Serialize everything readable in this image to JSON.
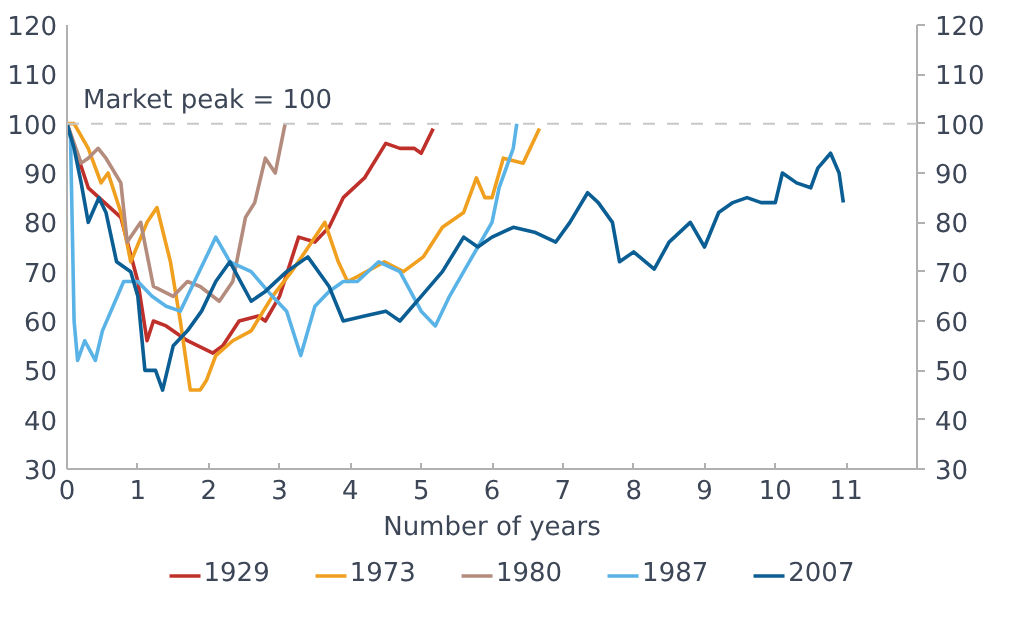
{
  "chart_data": {
    "type": "line",
    "xlabel": "Number of years",
    "xlim": [
      0,
      12
    ],
    "xticks": [
      0,
      1,
      2,
      3,
      4,
      5,
      6,
      7,
      8,
      9,
      10,
      11
    ],
    "ylim": [
      30,
      120
    ],
    "yticks": [
      30,
      40,
      50,
      60,
      70,
      80,
      90,
      100,
      110,
      120
    ],
    "y2lim": [
      30,
      120
    ],
    "y2ticks": [
      30,
      40,
      50,
      60,
      70,
      80,
      90,
      100,
      110,
      120
    ],
    "grid": false,
    "legend": "bottom",
    "line_style": "solid",
    "marker": "none",
    "ref_lines": [
      {
        "axis": "y",
        "value": 100,
        "label": "Market peak = 100",
        "color": "#c8c8c8",
        "line_style": "dashed"
      }
    ],
    "series": [
      {
        "name": "1929",
        "color": "#c0302b",
        "x": [
          0,
          0.3,
          0.76,
          1.0,
          1.13,
          1.22,
          1.4,
          1.7,
          2.06,
          2.2,
          2.43,
          2.7,
          2.8,
          3.0,
          3.27,
          3.5,
          3.7,
          3.9,
          4.2,
          4.5,
          4.7,
          4.9,
          5.0,
          5.17
        ],
        "values": [
          100,
          87,
          81,
          68,
          56,
          60,
          59,
          56,
          53.5,
          55,
          60,
          61,
          60,
          65,
          77,
          76,
          79,
          85,
          89,
          96,
          95,
          95,
          94,
          99
        ]
      },
      {
        "name": "1973",
        "color": "#f0a01e",
        "x": [
          0,
          0.1,
          0.3,
          0.48,
          0.58,
          0.76,
          0.9,
          1.13,
          1.27,
          1.46,
          1.6,
          1.74,
          1.88,
          1.97,
          2.1,
          2.34,
          2.6,
          2.9,
          3.17,
          3.36,
          3.64,
          3.83,
          3.96,
          4.1,
          4.48,
          4.75,
          5.03,
          5.3,
          5.6,
          5.78,
          5.9,
          6.0,
          6.16,
          6.44,
          6.67
        ],
        "values": [
          100,
          100,
          95,
          88,
          90,
          82,
          72,
          80,
          83,
          72,
          60,
          46,
          46,
          48,
          53,
          56,
          58,
          65,
          70,
          74,
          80,
          72,
          68,
          69,
          72,
          70,
          73,
          79,
          82,
          89,
          85,
          85,
          93,
          92,
          99
        ]
      },
      {
        "name": "1980",
        "color": "#b38c7d",
        "x": [
          0,
          0.2,
          0.3,
          0.44,
          0.55,
          0.76,
          0.85,
          1.04,
          1.22,
          1.5,
          1.7,
          1.88,
          2.15,
          2.34,
          2.52,
          2.65,
          2.8,
          2.94,
          3.08
        ],
        "values": [
          100,
          92,
          93,
          95,
          93,
          88,
          76,
          80,
          67,
          65,
          68,
          67,
          64,
          68,
          81,
          84,
          93,
          90,
          100
        ]
      },
      {
        "name": "1987",
        "color": "#5ab3e6",
        "x": [
          0,
          0.05,
          0.1,
          0.15,
          0.25,
          0.4,
          0.5,
          0.65,
          0.8,
          1.0,
          1.2,
          1.4,
          1.6,
          1.8,
          2.0,
          2.1,
          2.3,
          2.6,
          2.9,
          3.1,
          3.3,
          3.5,
          3.7,
          3.9,
          4.1,
          4.4,
          4.7,
          5.0,
          5.2,
          5.4,
          5.6,
          5.8,
          6.0,
          6.1,
          6.3,
          6.35
        ],
        "values": [
          100,
          97,
          60,
          52,
          56,
          52,
          58,
          63,
          68,
          68,
          65,
          63,
          62,
          68,
          74,
          77,
          72,
          70,
          65,
          62,
          53,
          63,
          66,
          68,
          68,
          72,
          70,
          62,
          59,
          65,
          70,
          75,
          80,
          87,
          95,
          100
        ]
      },
      {
        "name": "2007",
        "color": "#0b5e93",
        "x": [
          0,
          0.1,
          0.2,
          0.3,
          0.45,
          0.55,
          0.7,
          0.9,
          1.0,
          1.1,
          1.25,
          1.35,
          1.5,
          1.7,
          1.9,
          2.1,
          2.3,
          2.6,
          2.8,
          3.1,
          3.4,
          3.7,
          3.9,
          4.2,
          4.5,
          4.7,
          5.0,
          5.3,
          5.6,
          5.8,
          6.0,
          6.3,
          6.6,
          6.9,
          7.1,
          7.35,
          7.5,
          7.7,
          7.8,
          8.0,
          8.29,
          8.5,
          8.8,
          9.0,
          9.2,
          9.4,
          9.6,
          9.8,
          10.0,
          10.1,
          10.3,
          10.5,
          10.6,
          10.78,
          10.9,
          10.96
        ],
        "values": [
          100,
          95,
          88,
          80,
          85,
          82,
          72,
          70,
          65,
          50,
          50,
          46,
          55,
          58,
          62,
          68,
          72,
          64,
          66,
          70,
          73,
          67,
          60,
          61,
          62,
          60,
          65,
          70,
          77,
          75,
          77,
          79,
          78,
          76,
          80,
          86,
          84,
          80,
          72,
          74,
          70.5,
          76,
          80,
          75,
          82,
          84,
          85,
          84,
          84,
          90,
          88,
          87,
          91,
          94,
          90,
          84
        ]
      }
    ]
  }
}
